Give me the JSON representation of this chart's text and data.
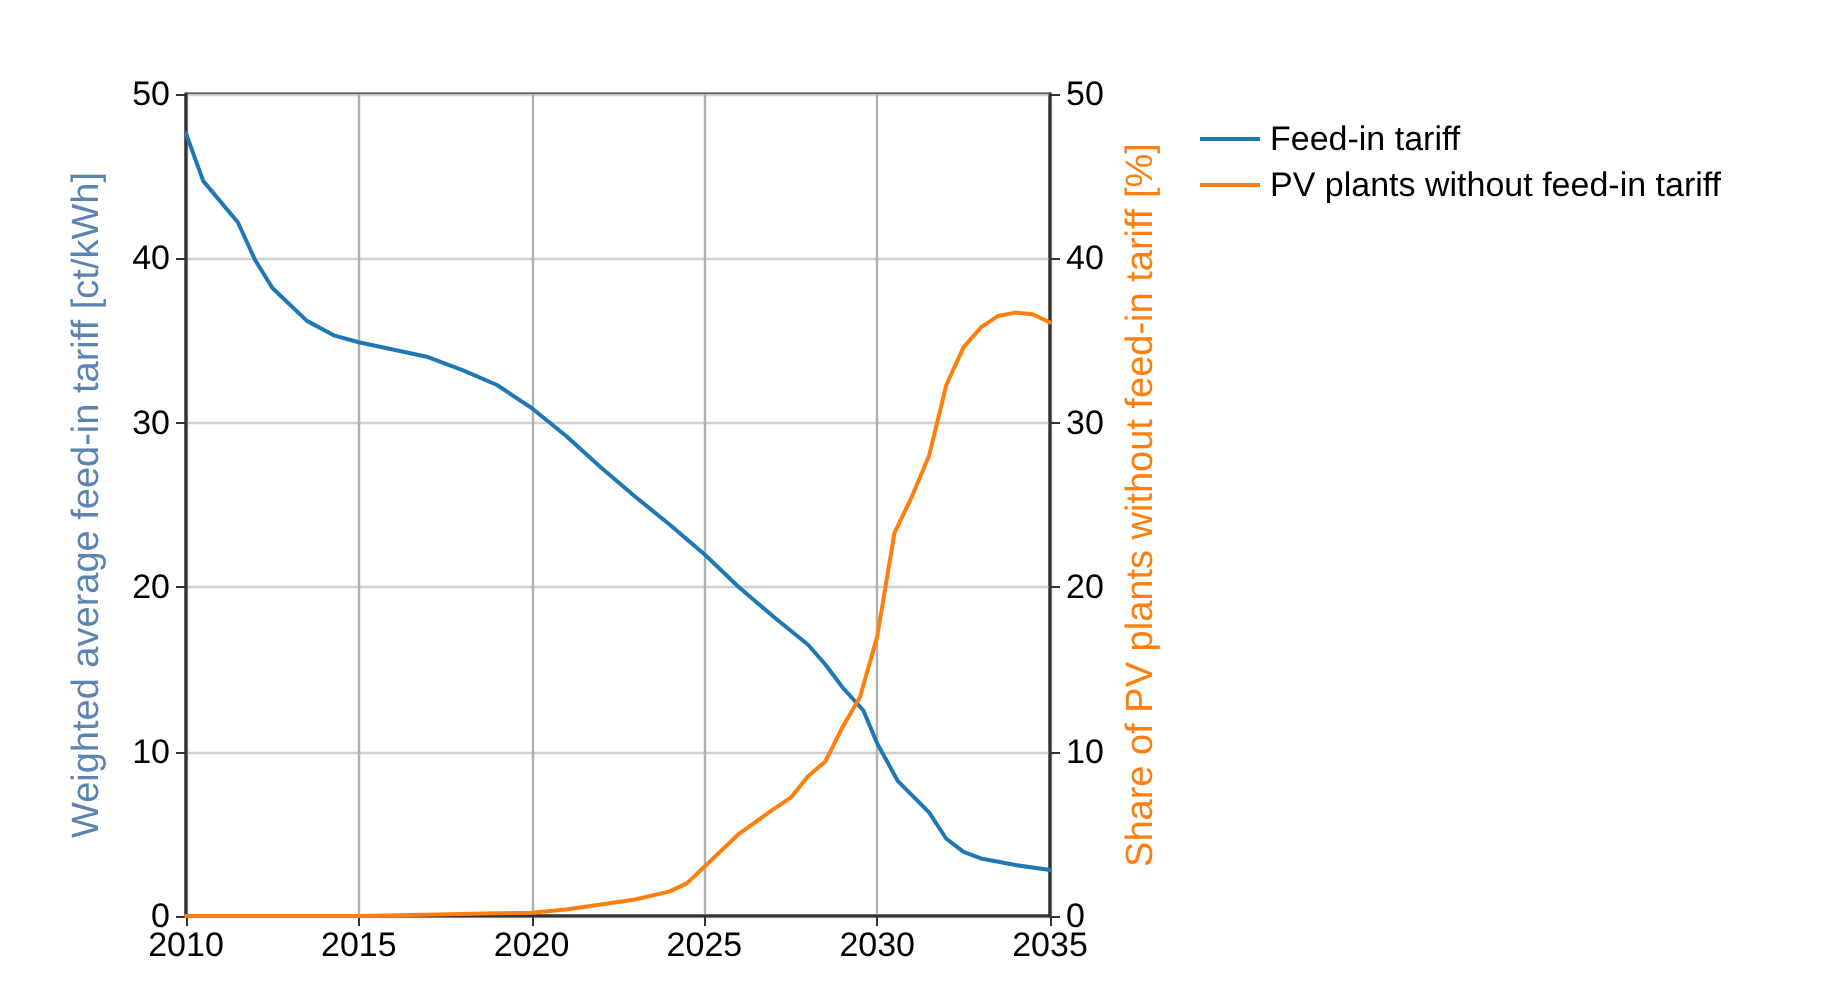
{
  "chart_data": {
    "type": "line",
    "ylabel": "Weighted average feed-in tariff [ct/kWh]",
    "y2label": "Share of PV plants without feed-in tariff [%]",
    "xlim": [
      2010,
      2035
    ],
    "xticks": [
      2010,
      2015,
      2020,
      2025,
      2030,
      2035
    ],
    "ylim": [
      0,
      50
    ],
    "yticks": [
      0,
      10,
      20,
      30,
      40,
      50
    ],
    "y2lim": [
      0,
      50
    ],
    "y2ticks": [
      0,
      10,
      20,
      30,
      40,
      50
    ],
    "grid": true,
    "legend": "top right",
    "marker": "none",
    "line_style": "solid",
    "series": [
      {
        "name": "Feed-in tariff",
        "color": "#1f77b4",
        "x": [
          2010,
          2010.5,
          2011.5,
          2012,
          2012.5,
          2013.5,
          2014.3,
          2015,
          2017,
          2018,
          2019,
          2020,
          2021,
          2022,
          2023,
          2024,
          2025,
          2026,
          2027,
          2028,
          2028.5,
          2029,
          2029.6,
          2030,
          2030.6,
          2031.5,
          2032,
          2032.5,
          2033,
          2034,
          2035
        ],
        "values": [
          47.6,
          44.7,
          42.2,
          39.9,
          38.2,
          36.2,
          35.3,
          34.9,
          34.0,
          33.2,
          32.3,
          30.9,
          29.2,
          27.3,
          25.5,
          23.8,
          22.0,
          20.0,
          18.2,
          16.5,
          15.3,
          13.9,
          12.5,
          10.5,
          8.2,
          6.3,
          4.7,
          3.9,
          3.5,
          3.1,
          2.8
        ]
      },
      {
        "name": "PV plants without feed-in tariff",
        "color": "#ff7f0e",
        "axis": "y2",
        "x": [
          2010,
          2015,
          2020,
          2021,
          2022,
          2023,
          2024,
          2024.5,
          2025,
          2025.5,
          2026,
          2027,
          2027.5,
          2028,
          2028.5,
          2029,
          2029.5,
          2030,
          2030.5,
          2031,
          2031.5,
          2032,
          2032.5,
          2033,
          2033.5,
          2034,
          2034.5,
          2035
        ],
        "values": [
          0,
          0,
          0.2,
          0.4,
          0.7,
          1.0,
          1.5,
          2.0,
          3.0,
          4.0,
          5.0,
          6.5,
          7.2,
          8.5,
          9.4,
          11.5,
          13.3,
          17.0,
          23.3,
          25.5,
          28.0,
          32.3,
          34.6,
          35.8,
          36.5,
          36.7,
          36.6,
          36.1
        ]
      }
    ]
  }
}
